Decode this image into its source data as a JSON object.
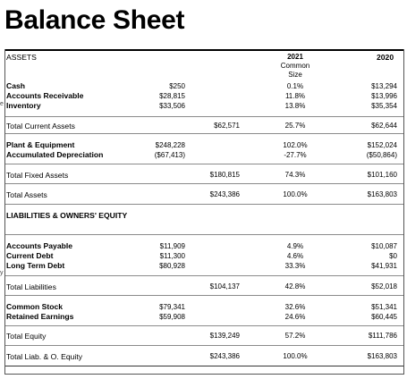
{
  "title": "Balance Sheet",
  "headers": {
    "assets": "ASSETS",
    "liab_equity": "LIABILITIES & OWNERS' EQUITY",
    "year2021": "2021",
    "common": "Common",
    "size": "Size",
    "year2020": "2020"
  },
  "current_assets": {
    "labels": [
      "Cash",
      "Accounts Receivable",
      "Inventory"
    ],
    "values": [
      "$250",
      "$28,815",
      "$33,506"
    ],
    "cs": [
      "0.1%",
      "11.8%",
      "13.8%"
    ],
    "prior": [
      "$13,294",
      "$13,996",
      "$35,354"
    ]
  },
  "total_current_assets": {
    "label": "Total Current Assets",
    "total": "$62,571",
    "cs": "25.7%",
    "prior": "$62,644"
  },
  "fixed_assets": {
    "labels": [
      "Plant & Equipment",
      "Accumulated Depreciation"
    ],
    "values": [
      "$248,228",
      "($67,413)"
    ],
    "cs": [
      "102.0%",
      "-27.7%"
    ],
    "prior": [
      "$152,024",
      "($50,864)"
    ]
  },
  "total_fixed_assets": {
    "label": "Total Fixed Assets",
    "total": "$180,815",
    "cs": "74.3%",
    "prior": "$101,160"
  },
  "total_assets": {
    "label": "Total Assets",
    "total": "$243,386",
    "cs": "100.0%",
    "prior": "$163,803"
  },
  "liabilities": {
    "labels": [
      "Accounts Payable",
      "Current Debt",
      "Long Term Debt"
    ],
    "values": [
      "$11,909",
      "$11,300",
      "$80,928"
    ],
    "cs": [
      "4.9%",
      "4.6%",
      "33.3%"
    ],
    "prior": [
      "$10,087",
      "$0",
      "$41,931"
    ]
  },
  "total_liabilities": {
    "label": "Total Liabilities",
    "total": "$104,137",
    "cs": "42.8%",
    "prior": "$52,018"
  },
  "equity": {
    "labels": [
      "Common Stock",
      "Retained Earnings"
    ],
    "values": [
      "$79,341",
      "$59,908"
    ],
    "cs": [
      "32.6%",
      "24.6%"
    ],
    "prior": [
      "$51,341",
      "$60,445"
    ]
  },
  "total_equity": {
    "label": "Total Equity",
    "total": "$139,249",
    "cs": "57.2%",
    "prior": "$111,786"
  },
  "total_liab_equity": {
    "label": "Total Liab. & O. Equity",
    "total": "$243,386",
    "cs": "100.0%",
    "prior": "$163,803"
  },
  "edge_ticks": [
    "e",
    "y"
  ]
}
